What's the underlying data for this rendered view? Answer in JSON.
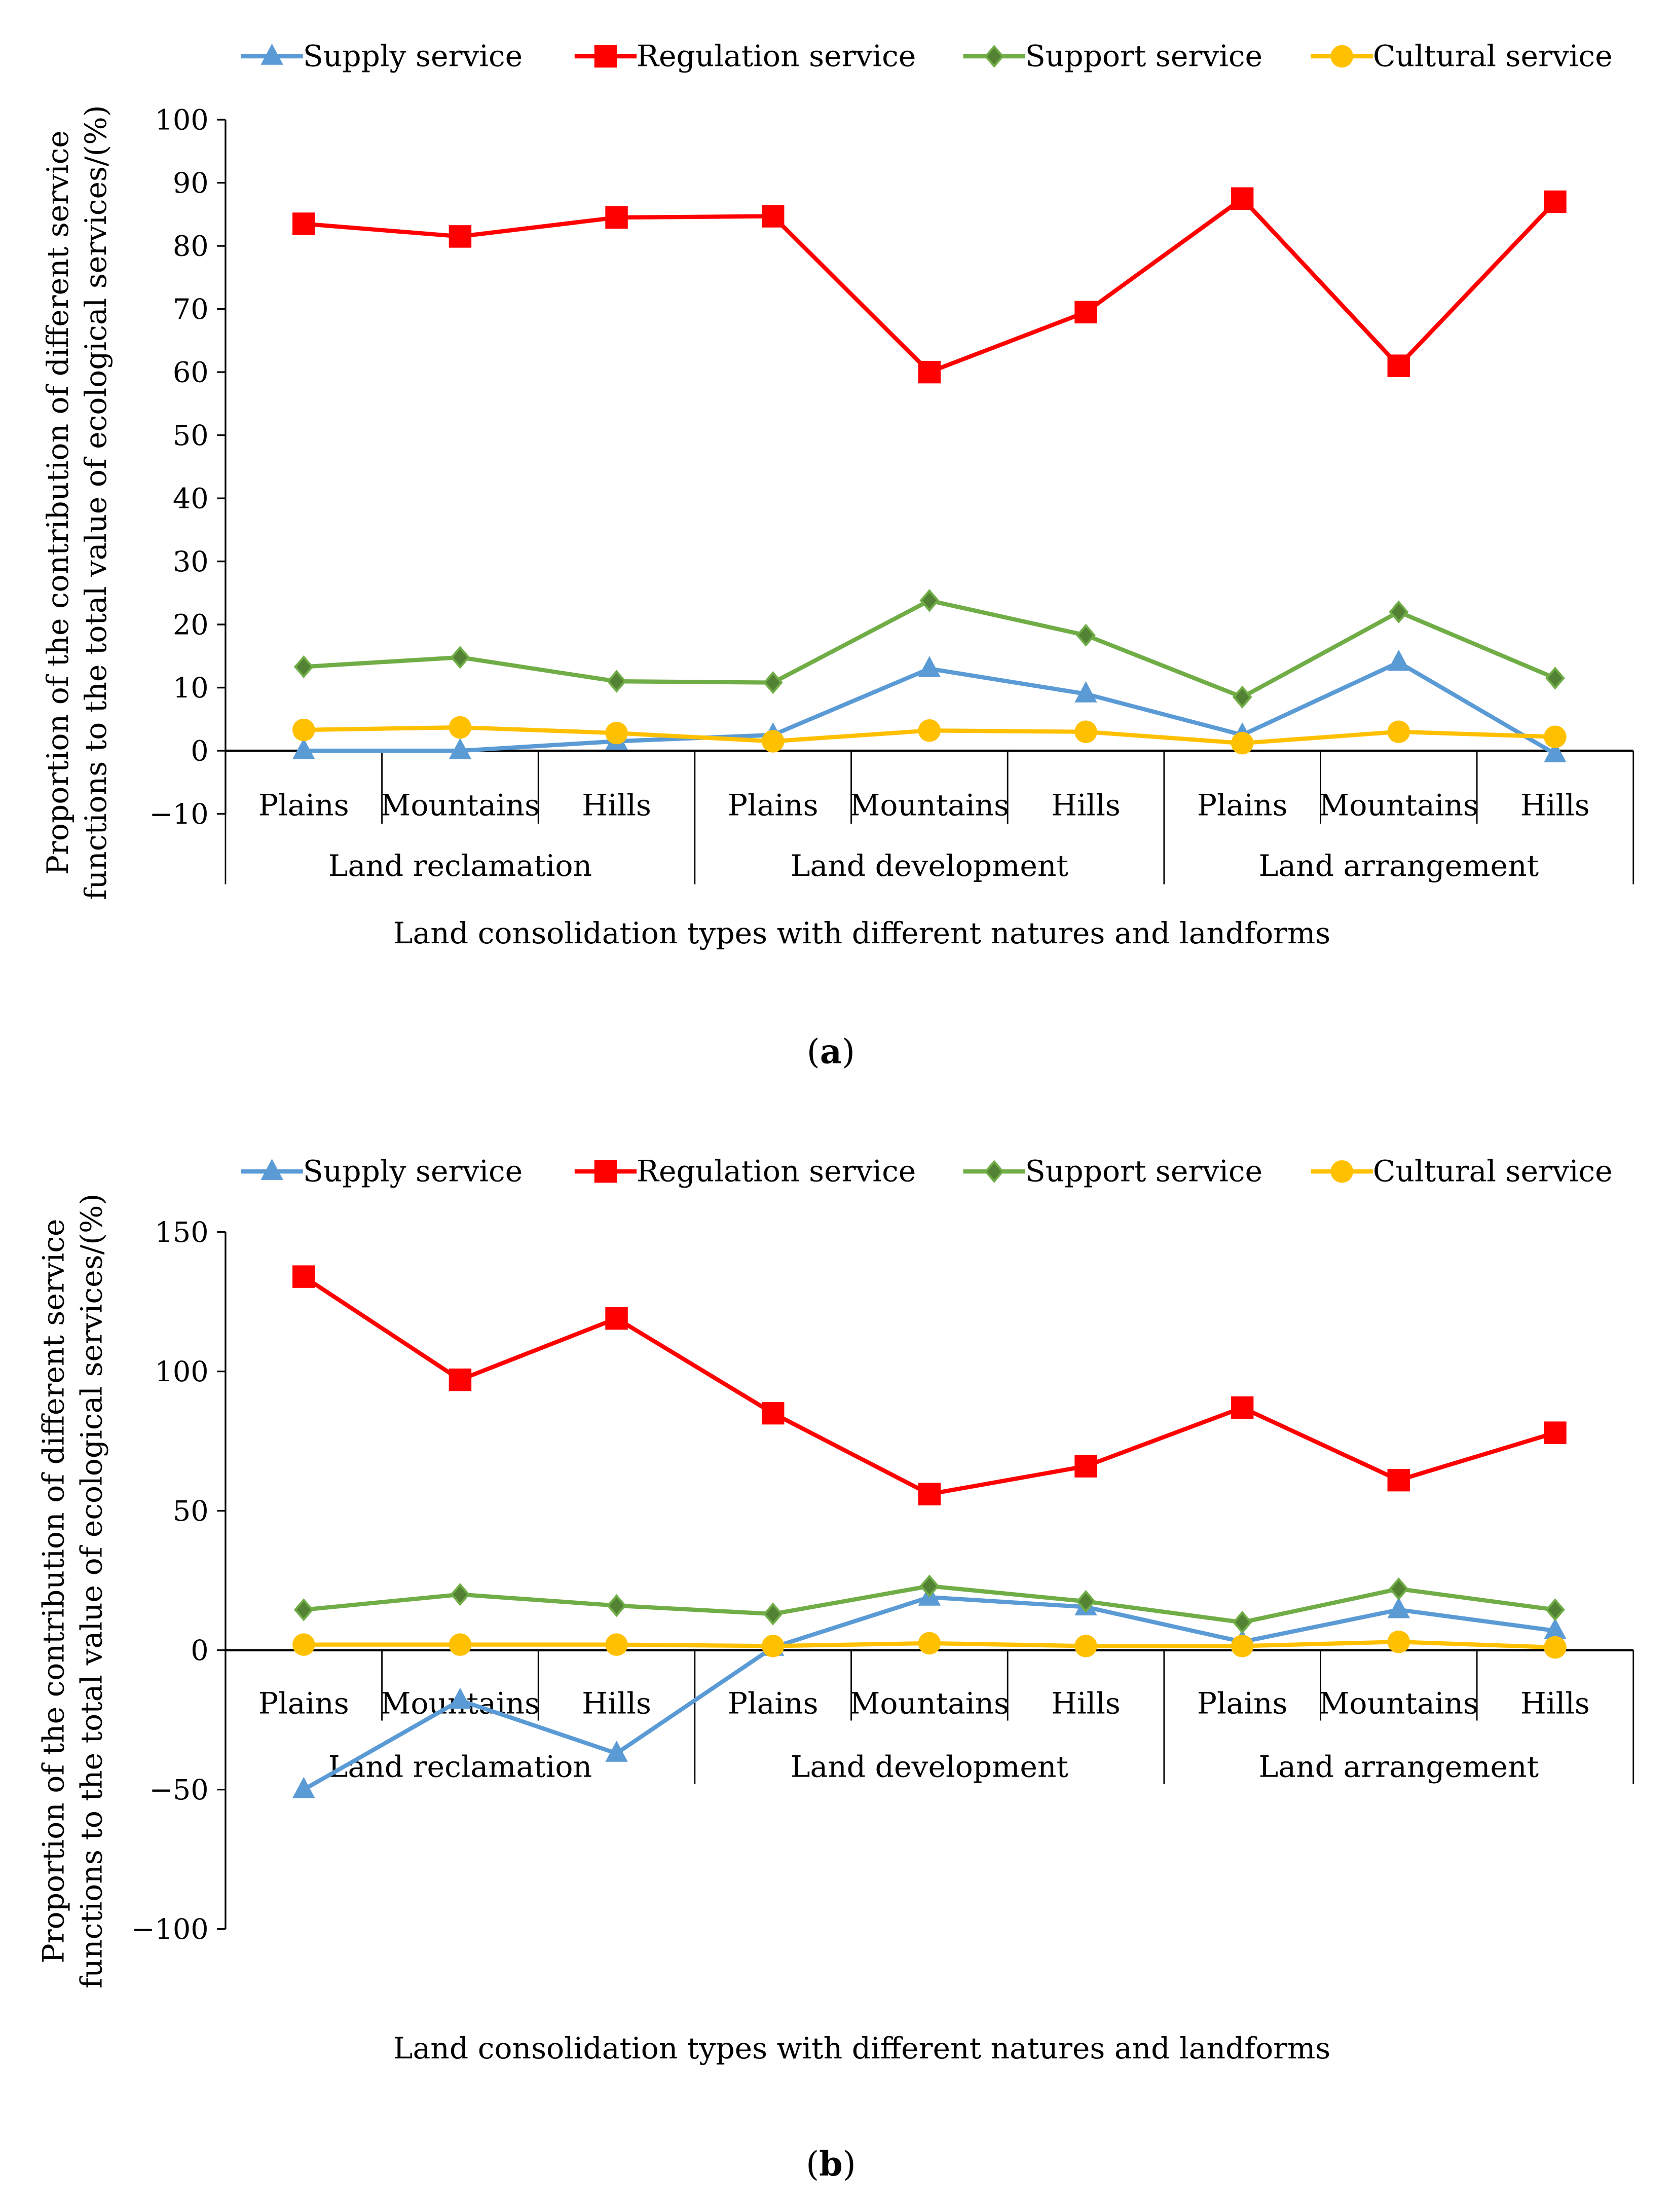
{
  "colors": {
    "supply": "#5b9bd5",
    "regulation": "#ff0000",
    "support": "#70ad47",
    "support_marker": "#548235",
    "cultural": "#ffc000"
  },
  "chart_data": [
    {
      "type": "line",
      "caption_letter": "a",
      "ylabel_lines": [
        "Proportion  of the contribution of different service",
        "functions to the total value of ecological services/(%)"
      ],
      "xlabel": "Land consolidation types with different natures and landforms",
      "ylim": [
        -10,
        100
      ],
      "yticks": [
        -10,
        0,
        10,
        20,
        30,
        40,
        50,
        60,
        70,
        80,
        90,
        100
      ],
      "ytick_labels": [
        "−10",
        "0",
        "10",
        "20",
        "30",
        "40",
        "50",
        "60",
        "70",
        "80",
        "90",
        "100"
      ],
      "categories": [
        "Plains",
        "Mountains",
        "Hills",
        "Plains",
        "Mountains",
        "Hills",
        "Plains",
        "Mountains",
        "Hills"
      ],
      "groups": [
        "Land reclamation",
        "Land development",
        "Land arrangement"
      ],
      "legend_position": "top",
      "series": [
        {
          "key": "supply",
          "name": "Supply service",
          "marker": "triangle",
          "values": [
            0,
            0,
            1.5,
            2.5,
            13,
            9,
            2.5,
            14,
            -0.5
          ]
        },
        {
          "key": "regulation",
          "name": "Regulation service",
          "marker": "square",
          "values": [
            83.5,
            81.5,
            84.5,
            84.7,
            60,
            69.5,
            87.5,
            61,
            87
          ]
        },
        {
          "key": "support",
          "name": "Support service",
          "marker": "diamond",
          "values": [
            13.3,
            14.8,
            11,
            10.8,
            23.8,
            18.3,
            8.5,
            22,
            11.5
          ]
        },
        {
          "key": "cultural",
          "name": "Cultural service",
          "marker": "circle",
          "values": [
            3.3,
            3.7,
            2.8,
            1.5,
            3.2,
            3,
            1.2,
            3,
            2.2
          ]
        }
      ]
    },
    {
      "type": "line",
      "caption_letter": "b",
      "ylabel_lines": [
        "Proportion  of the contribution of different service",
        "functions to the total value of ecological services/(%)"
      ],
      "xlabel": "Land consolidation types with different natures and landforms",
      "ylim": [
        -100,
        150
      ],
      "yticks": [
        -100,
        -50,
        0,
        50,
        100,
        150
      ],
      "ytick_labels": [
        "−100",
        "−50",
        "0",
        "50",
        "100",
        "150"
      ],
      "categories": [
        "Plains",
        "Mountains",
        "Hills",
        "Plains",
        "Mountains",
        "Hills",
        "Plains",
        "Mountains",
        "Hills"
      ],
      "groups": [
        "Land reclamation",
        "Land development",
        "Land arrangement"
      ],
      "legend_position": "top",
      "series": [
        {
          "key": "supply",
          "name": "Supply service",
          "marker": "triangle",
          "values": [
            -50,
            -18,
            -37,
            1,
            19,
            15.5,
            3,
            14.5,
            7
          ]
        },
        {
          "key": "regulation",
          "name": "Regulation service",
          "marker": "square",
          "values": [
            134,
            97,
            119,
            85,
            56,
            66,
            87,
            61,
            78
          ]
        },
        {
          "key": "support",
          "name": "Support service",
          "marker": "diamond",
          "values": [
            14.5,
            20,
            16,
            13,
            23,
            17.5,
            10,
            22,
            14.5
          ]
        },
        {
          "key": "cultural",
          "name": "Cultural service",
          "marker": "circle",
          "values": [
            2,
            2,
            2,
            1.5,
            2.5,
            1.5,
            1.5,
            3,
            1
          ]
        }
      ]
    }
  ]
}
